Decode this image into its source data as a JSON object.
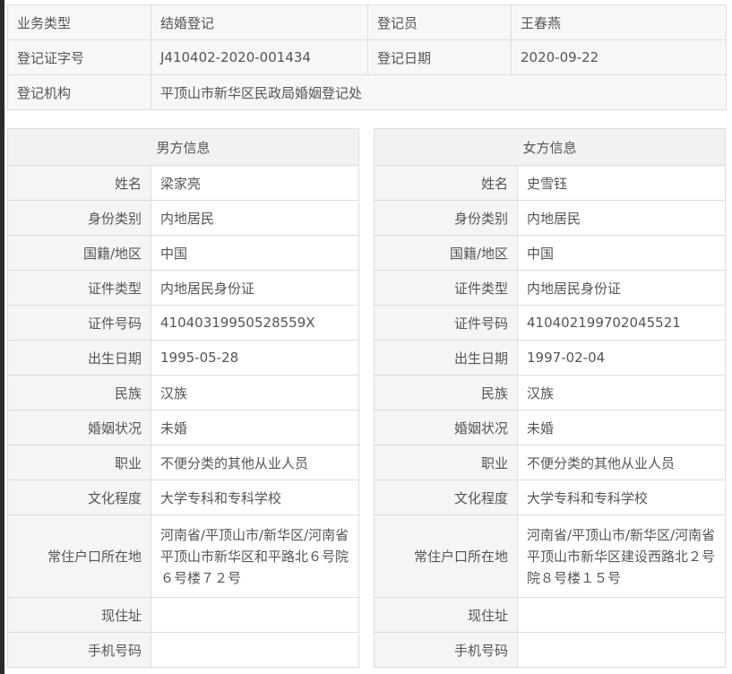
{
  "summary": {
    "business_type_label": "业务类型",
    "business_type": "结婚登记",
    "registrar_label": "登记员",
    "registrar": "王春燕",
    "cert_no_label": "登记证字号",
    "cert_no": "J410402-2020-001434",
    "reg_date_label": "登记日期",
    "reg_date": "2020-09-22",
    "office_label": "登记机构",
    "office": "平顶山市新华区民政局婚姻登记处"
  },
  "male": {
    "title": "男方信息",
    "rows": [
      {
        "label": "姓名",
        "value": "梁家亮"
      },
      {
        "label": "身份类别",
        "value": "内地居民"
      },
      {
        "label": "国籍/地区",
        "value": "中国"
      },
      {
        "label": "证件类型",
        "value": "内地居民身份证"
      },
      {
        "label": "证件号码",
        "value": "41040319950528559X"
      },
      {
        "label": "出生日期",
        "value": "1995-05-28"
      },
      {
        "label": "民族",
        "value": "汉族"
      },
      {
        "label": "婚姻状况",
        "value": "未婚"
      },
      {
        "label": "职业",
        "value": "不便分类的其他从业人员"
      },
      {
        "label": "文化程度",
        "value": "大学专科和专科学校"
      },
      {
        "label": "常住户口所在地",
        "value": "河南省/平顶山市/新华区/河南省平顶山市新华区和平路北６号院６号楼７２号"
      },
      {
        "label": "现住址",
        "value": ""
      },
      {
        "label": "手机号码",
        "value": ""
      }
    ]
  },
  "female": {
    "title": "女方信息",
    "rows": [
      {
        "label": "姓名",
        "value": "史雪钰"
      },
      {
        "label": "身份类别",
        "value": "内地居民"
      },
      {
        "label": "国籍/地区",
        "value": "中国"
      },
      {
        "label": "证件类型",
        "value": "内地居民身份证"
      },
      {
        "label": "证件号码",
        "value": "410402199702045521"
      },
      {
        "label": "出生日期",
        "value": "1997-02-04"
      },
      {
        "label": "民族",
        "value": "汉族"
      },
      {
        "label": "婚姻状况",
        "value": "未婚"
      },
      {
        "label": "职业",
        "value": "不便分类的其他从业人员"
      },
      {
        "label": "文化程度",
        "value": "大学专科和专科学校"
      },
      {
        "label": "常住户口所在地",
        "value": "河南省/平顶山市/新华区/河南省平顶山市新华区建设西路北２号院８号楼１５号"
      },
      {
        "label": "现住址",
        "value": ""
      },
      {
        "label": "手机号码",
        "value": ""
      }
    ]
  }
}
